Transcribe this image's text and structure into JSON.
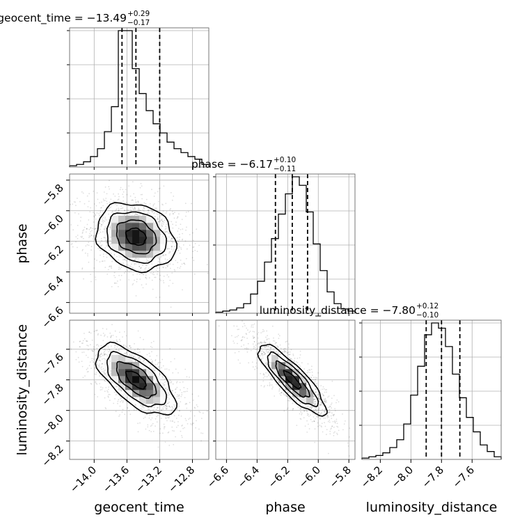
{
  "chart_data": {
    "type": "corner",
    "grid": true,
    "parameters": [
      "geocent_time",
      "phase",
      "luminosity_distance"
    ],
    "ranges": {
      "geocent_time": [
        -14.3,
        -12.6
      ],
      "phase": [
        -6.67,
        -5.76
      ],
      "luminosity_distance": [
        -8.32,
        -7.41
      ]
    },
    "ticks": {
      "geocent_time": [
        -14.0,
        -13.6,
        -13.2,
        -12.8
      ],
      "phase": [
        -6.6,
        -6.4,
        -6.2,
        -6.0,
        -5.8
      ],
      "luminosity_distance": [
        -8.2,
        -8.0,
        -7.8,
        -7.6
      ]
    },
    "tick_labels": {
      "geocent_time": [
        "−14.0",
        "−13.6",
        "−13.2",
        "−12.8"
      ],
      "phase": [
        "−6.6",
        "−6.4",
        "−6.2",
        "−6.0",
        "−5.8"
      ],
      "luminosity_distance": [
        "−8.2",
        "−8.0",
        "−7.8",
        "−7.6"
      ]
    },
    "axis_labels": {
      "geocent_time": "geocent_time",
      "phase": "phase",
      "luminosity_distance": "luminosity_distance"
    },
    "summaries": {
      "geocent_time": {
        "title": "geocent_time = −13.49",
        "median": -13.49,
        "plus": 0.29,
        "minus": 0.17,
        "plus_label": "+0.29",
        "minus_label": "−0.17",
        "quantiles": [
          -13.66,
          -13.49,
          -13.2
        ]
      },
      "phase": {
        "title": "phase = −6.17",
        "median": -6.17,
        "plus": 0.1,
        "minus": 0.11,
        "plus_label": "+0.10",
        "minus_label": "−0.11",
        "quantiles": [
          -6.28,
          -6.17,
          -6.07
        ]
      },
      "luminosity_distance": {
        "title": "luminosity_distance = −7.80",
        "median": -7.8,
        "plus": 0.12,
        "minus": 0.1,
        "plus_label": "+0.12",
        "minus_label": "−0.10",
        "quantiles": [
          -7.9,
          -7.8,
          -7.68
        ]
      }
    },
    "histograms": {
      "geocent_time": {
        "bins": 20,
        "counts": [
          1,
          2,
          4,
          8,
          14,
          27,
          46,
          104,
          104,
          75,
          56,
          43,
          33,
          26,
          19,
          14,
          11,
          8,
          6,
          2
        ]
      },
      "phase": {
        "bins": 20,
        "counts": [
          1,
          2,
          3,
          5,
          9,
          18,
          30,
          48,
          70,
          93,
          112,
          128,
          120,
          95,
          65,
          40,
          20,
          9,
          4,
          2
        ]
      },
      "luminosity_distance": {
        "bins": 20,
        "counts": [
          1,
          2,
          3,
          5,
          9,
          15,
          27,
          49,
          71,
          95,
          104,
          100,
          86,
          65,
          47,
          32,
          21,
          11,
          6,
          2
        ]
      }
    },
    "correlations": {
      "phase_vs_geocent_time": -0.2,
      "luminosity_distance_vs_geocent_time": -0.65,
      "luminosity_distance_vs_phase": -0.85
    },
    "contour_levels": [
      0.118,
      0.393,
      0.675,
      0.865
    ]
  }
}
